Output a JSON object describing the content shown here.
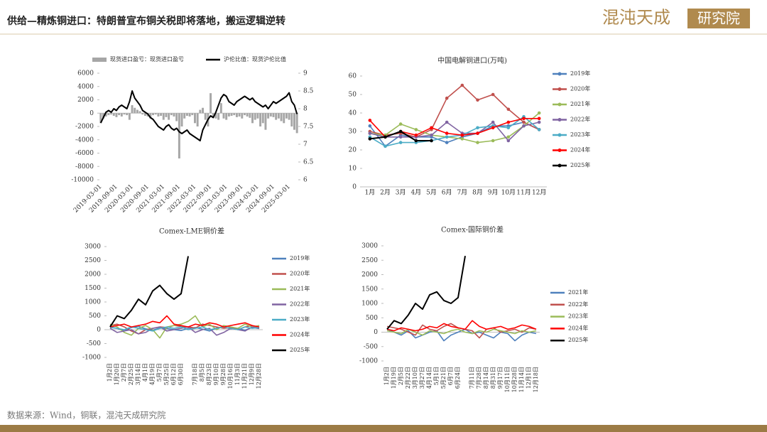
{
  "header": {
    "title": "供给—精炼铜进口：特朗普宣布铜关税即将落地，搬运逻辑逆转",
    "logo": "混沌天成",
    "logo_box": "研究院"
  },
  "footer": {
    "source": "数据来源：Wind，铜联，混沌天成研究院"
  },
  "chart_data": [
    {
      "type": "combo",
      "legend": "top",
      "categories": [
        "2019-03-01",
        null,
        null,
        null,
        null,
        null,
        "2019-09-01",
        null,
        null,
        null,
        null,
        null,
        "2020-03-01",
        null,
        null,
        null,
        null,
        null,
        "2020-09-01",
        null,
        null,
        null,
        null,
        null,
        "2021-03-01",
        null,
        null,
        null,
        null,
        null,
        "2021-09-01",
        null,
        null,
        null,
        null,
        null,
        "2022-03-01",
        null,
        null,
        null,
        null,
        null,
        "2022-09-01",
        null,
        null,
        null,
        null,
        null,
        "2023-03-01",
        null,
        null,
        null,
        null,
        null,
        "2023-09-01",
        null,
        null,
        null,
        null,
        null,
        "2024-03-01",
        null,
        null,
        null,
        null,
        null,
        "2024-09-01",
        null,
        null,
        null,
        null,
        null,
        "2025-03-01",
        null,
        null,
        null
      ],
      "ylim": [
        -10000,
        6000
      ],
      "yticks": [
        -10000,
        -8000,
        -6000,
        -4000,
        -2000,
        0,
        2000,
        4000,
        6000
      ],
      "y2lim": [
        6,
        9
      ],
      "y2ticks": [
        6,
        6.5,
        7,
        7.5,
        8,
        8.5,
        9
      ],
      "series": [
        {
          "name": "现货进口盈亏：现货进口盈亏",
          "type": "bar",
          "color": "#a6a6a6",
          "values": [
            -1500,
            -800,
            -500,
            -300,
            -200,
            -400,
            -600,
            -300,
            -500,
            -200,
            -300,
            -1000,
            1200,
            800,
            500,
            300,
            -200,
            -400,
            -500,
            -800,
            -300,
            -200,
            -500,
            -400,
            -1000,
            -600,
            -1000,
            -300,
            -500,
            -1200,
            -6800,
            -2000,
            -800,
            -400,
            -500,
            -300,
            -1500,
            -2000,
            500,
            800,
            -1000,
            -2000,
            3000,
            -500,
            -800,
            -1000,
            1500,
            -800,
            -1000,
            -500,
            -400,
            -300,
            -600,
            -500,
            -800,
            -300,
            -500,
            -700,
            -1500,
            -1000,
            -800,
            -2000,
            -1500,
            -2500,
            -800,
            -500,
            -600,
            -1000,
            -800,
            -1200,
            -1500,
            -800,
            -1000,
            -2000,
            -2500,
            -3000
          ]
        },
        {
          "name": "沪伦比值：现货沪伦比值",
          "type": "line",
          "axis": "y2",
          "color": "#000000",
          "values": [
            7.6,
            7.75,
            7.9,
            7.95,
            7.9,
            8.0,
            7.95,
            8.05,
            8.1,
            8.05,
            8.0,
            8.2,
            8.5,
            8.3,
            8.2,
            8.1,
            7.95,
            7.9,
            7.85,
            7.75,
            7.7,
            7.6,
            7.5,
            7.45,
            7.4,
            7.5,
            7.55,
            7.45,
            7.4,
            7.45,
            7.35,
            7.3,
            7.35,
            7.4,
            7.3,
            7.25,
            7.2,
            7.15,
            7.1,
            7.4,
            7.55,
            7.7,
            7.8,
            7.75,
            7.9,
            8.1,
            8.3,
            8.4,
            8.35,
            8.2,
            8.15,
            8.1,
            8.2,
            8.25,
            8.3,
            8.35,
            8.3,
            8.25,
            8.3,
            8.2,
            8.15,
            8.1,
            8.05,
            8.1,
            8.0,
            8.1,
            8.2,
            8.15,
            8.2,
            8.25,
            8.3,
            8.35,
            8.45,
            8.2,
            8.1,
            7.85
          ]
        }
      ]
    },
    {
      "type": "line",
      "title": "中国电解铜进口(万吨)",
      "legend": "right",
      "markers": true,
      "categories": [
        "1月",
        "2月",
        "3月",
        "4月",
        "5月",
        "6月",
        "7月",
        "8月",
        "9月",
        "10月",
        "11月",
        "12月"
      ],
      "ylim": [
        0,
        60
      ],
      "yticks": [
        0,
        10,
        20,
        30,
        40,
        50,
        60
      ],
      "series": [
        {
          "name": "2019年",
          "color": "#4f81bd",
          "values": [
            33,
            22,
            28,
            27,
            27,
            24,
            27,
            29,
            33,
            33,
            35,
            31
          ]
        },
        {
          "name": "2020年",
          "color": "#c0504d",
          "values": [
            30,
            28,
            29,
            27,
            31,
            48,
            55,
            47,
            50,
            42,
            35,
            31
          ]
        },
        {
          "name": "2021年",
          "color": "#9bbb59",
          "values": [
            29,
            28,
            34,
            31,
            28,
            27,
            26,
            24,
            25,
            27,
            33,
            40
          ]
        },
        {
          "name": "2022年",
          "color": "#8064a2",
          "values": [
            29,
            27,
            27,
            27,
            28,
            35,
            29,
            29,
            35,
            25,
            33,
            35
          ]
        },
        {
          "name": "2023年",
          "color": "#4bacc6",
          "values": [
            27,
            22,
            24,
            24,
            25,
            27,
            28,
            32,
            33,
            32,
            38,
            31
          ]
        },
        {
          "name": "2024年",
          "color": "#ff0000",
          "values": [
            36,
            27,
            30,
            28,
            32,
            29,
            28,
            29,
            32,
            35,
            37,
            37
          ]
        },
        {
          "name": "2025年",
          "color": "#000000",
          "values": [
            26,
            27,
            30,
            25,
            25,
            null,
            null,
            null,
            null,
            null,
            null,
            null
          ]
        }
      ]
    },
    {
      "type": "line",
      "title": "Comex-LME铜价差",
      "legend": "right",
      "categories": [
        "1月2日",
        "1月20日",
        "2月7日",
        "2月25日",
        "3月14日",
        "4月1日",
        "4月19日",
        "5月7日",
        "5月25日",
        "6月12日",
        "6月30日",
        null,
        "7月18日",
        "8月5日",
        "8月23日",
        "9月10日",
        "9月28日",
        "10月16日",
        "11月3日",
        "11月21日",
        "12月9日",
        "12月28日"
      ],
      "ylim": [
        -1000,
        3000
      ],
      "yticks": [
        -1000,
        -500,
        0,
        500,
        1000,
        1500,
        2000,
        2500,
        3000
      ],
      "series": [
        {
          "name": "2019年",
          "color": "#4f81bd",
          "values": [
            100,
            50,
            -50,
            80,
            120,
            30,
            -20,
            60,
            40,
            0,
            -30,
            50,
            80,
            20,
            -50,
            60,
            100,
            30,
            50,
            -20,
            80,
            40
          ]
        },
        {
          "name": "2020年",
          "color": "#c0504d",
          "values": [
            150,
            200,
            100,
            -50,
            -150,
            0,
            50,
            100,
            80,
            150,
            120,
            100,
            60,
            200,
            150,
            100,
            50,
            80,
            0,
            100,
            150,
            50
          ]
        },
        {
          "name": "2021年",
          "color": "#9bbb59",
          "values": [
            200,
            100,
            -100,
            -200,
            50,
            150,
            0,
            -300,
            100,
            150,
            200,
            300,
            500,
            100,
            200,
            0,
            150,
            100,
            50,
            200,
            100,
            150
          ]
        },
        {
          "name": "2022年",
          "color": "#8064a2",
          "values": [
            50,
            -100,
            -50,
            0,
            -150,
            -100,
            50,
            100,
            -50,
            0,
            50,
            100,
            -100,
            0,
            50,
            -200,
            -100,
            50,
            0,
            -50,
            100,
            50
          ]
        },
        {
          "name": "2023年",
          "color": "#4bacc6",
          "values": [
            80,
            50,
            0,
            100,
            50,
            0,
            -50,
            50,
            100,
            50,
            100,
            0,
            50,
            100,
            0,
            50,
            100,
            50,
            0,
            100,
            50,
            80
          ]
        },
        {
          "name": "2024年",
          "color": "#ff0000",
          "values": [
            100,
            150,
            200,
            100,
            150,
            200,
            300,
            250,
            500,
            200,
            150,
            100,
            200,
            150,
            250,
            200,
            100,
            150,
            200,
            250,
            150,
            100
          ]
        },
        {
          "name": "2025年",
          "color": "#000000",
          "values": [
            100,
            500,
            400,
            700,
            1100,
            900,
            1400,
            1600,
            1300,
            1100,
            1300,
            2650,
            null,
            null,
            null,
            null,
            null,
            null,
            null,
            null,
            null,
            null
          ]
        }
      ]
    },
    {
      "type": "line",
      "title": "Comex-国际铜价差",
      "legend": "right",
      "categories": [
        "1月2日",
        "1月19日",
        "2月5日",
        "2月22日",
        "3月10日",
        "3月27日",
        "4月14日",
        "5月1日",
        "5月21日",
        "6月7日",
        "6月24日",
        null,
        "7月11日",
        "7月28日",
        "8月14日",
        "8月31日",
        "9月17日",
        "10月11日",
        "10月28日",
        "11月14日",
        "12月1日",
        "12月18日"
      ],
      "ylim": [
        -1000,
        3000
      ],
      "yticks": [
        -1000,
        -500,
        0,
        500,
        1000,
        1500,
        2000,
        2500,
        3000
      ],
      "series": [
        {
          "name": "2021年",
          "color": "#4f81bd",
          "values": [
            100,
            0,
            -100,
            50,
            -200,
            -100,
            0,
            50,
            -300,
            -100,
            0,
            100,
            -50,
            0,
            -100,
            -200,
            0,
            -50,
            -300,
            -100,
            0,
            -50
          ]
        },
        {
          "name": "2022年",
          "color": "#c0504d",
          "values": [
            200,
            150,
            100,
            0,
            -100,
            250,
            100,
            50,
            200,
            300,
            150,
            100,
            50,
            -200,
            100,
            150,
            0,
            50,
            100,
            0,
            150,
            100
          ]
        },
        {
          "name": "2023年",
          "color": "#9bbb59",
          "values": [
            50,
            0,
            -50,
            100,
            0,
            -100,
            50,
            0,
            -50,
            50,
            100,
            0,
            -50,
            50,
            0,
            100,
            50,
            0,
            -50,
            50,
            0,
            50
          ]
        },
        {
          "name": "2024年",
          "color": "#ff0000",
          "values": [
            100,
            50,
            150,
            100,
            50,
            100,
            200,
            150,
            300,
            200,
            150,
            100,
            400,
            200,
            100,
            150,
            200,
            100,
            150,
            250,
            200,
            100
          ]
        },
        {
          "name": "2025年",
          "color": "#000000",
          "values": [
            100,
            400,
            300,
            600,
            1000,
            800,
            1300,
            1400,
            1100,
            1000,
            1200,
            2650,
            null,
            null,
            null,
            null,
            null,
            null,
            null,
            null,
            null,
            null
          ]
        }
      ]
    }
  ]
}
